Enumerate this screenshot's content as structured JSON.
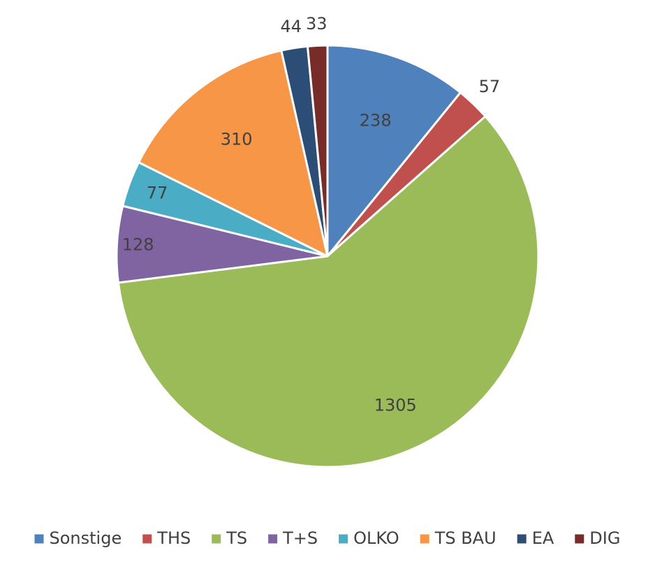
{
  "chart_data": {
    "type": "pie",
    "title": "",
    "categories": [
      "Sonstige",
      "THS",
      "TS",
      "T+S",
      "OLKO",
      "TS BAU",
      "EA",
      "DIG"
    ],
    "values": [
      238,
      57,
      1305,
      128,
      77,
      310,
      44,
      33
    ],
    "data_labels": [
      "238",
      "57",
      "1305",
      "128",
      "77",
      "310",
      "44",
      "33"
    ],
    "colors": [
      "#4f81bd",
      "#c0504d",
      "#9bbb59",
      "#8064a2",
      "#4bacc6",
      "#f79646",
      "#2c4d75",
      "#772c2a"
    ],
    "start_angle": "12 o'clock",
    "direction": "clockwise",
    "legend_position": "bottom"
  }
}
